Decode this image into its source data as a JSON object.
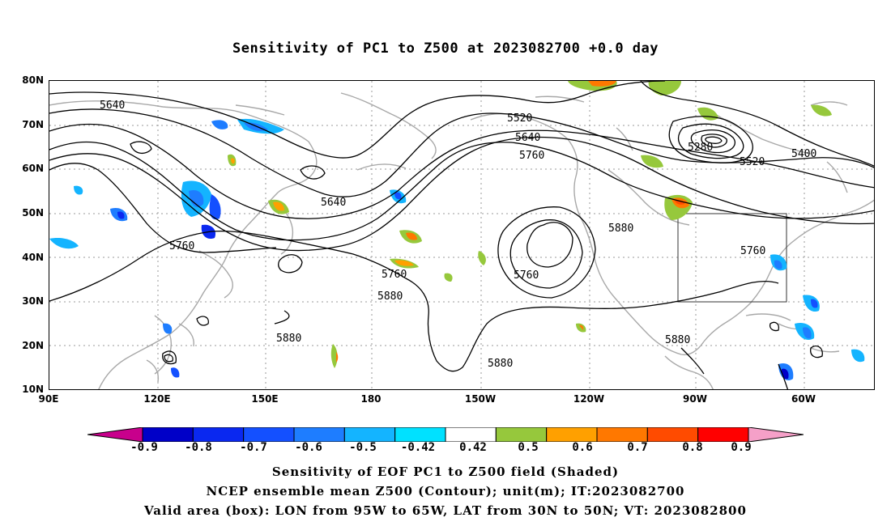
{
  "title": "Sensitivity of PC1 to Z500 at 2023082700 +0.0 day",
  "lat_labels": [
    "80N",
    "70N",
    "60N",
    "50N",
    "40N",
    "30N",
    "20N",
    "10N"
  ],
  "lon_labels": [
    "90E",
    "120E",
    "150E",
    "180",
    "150W",
    "120W",
    "90W",
    "60W"
  ],
  "contour_labels": {
    "c5640_nw": "5640",
    "c5520_n": "5520",
    "c5640_n": "5640",
    "c5760_n": "5760",
    "c5280": "5280",
    "c5400": "5400",
    "c5520_ne": "5520",
    "c5640_mid": "5640",
    "c5760_w": "5760",
    "c5760_pac": "5760",
    "c5880_pac": "5880",
    "c5760_low": "5760",
    "c5880_us": "5880",
    "c5760_e": "5760",
    "c5880_sw": "5880",
    "c5880_s": "5880",
    "c5880_gulf": "5880"
  },
  "colorbar": {
    "labels": [
      "-0.9",
      "-0.8",
      "-0.7",
      "-0.6",
      "-0.5",
      "-0.42",
      "0.42",
      "0.5",
      "0.6",
      "0.7",
      "0.8",
      "0.9"
    ],
    "colors": [
      "#c8008c",
      "#0000c8",
      "#0a28f0",
      "#1450ff",
      "#1e7dff",
      "#14b4ff",
      "#00e1ff",
      "#ffffff",
      "#96c83c",
      "#ffa000",
      "#ff7800",
      "#ff4b00",
      "#ff0000",
      "#f5a0c8"
    ]
  },
  "footer": {
    "line1": "Sensitivity of EOF PC1 to Z500 field (Shaded)",
    "line2": "NCEP ensemble mean Z500 (Contour); unit(m); IT:2023082700",
    "line3": "Valid area (box): LON from 95W to 65W, LAT from 30N to 50N; VT: 2023082800"
  }
}
